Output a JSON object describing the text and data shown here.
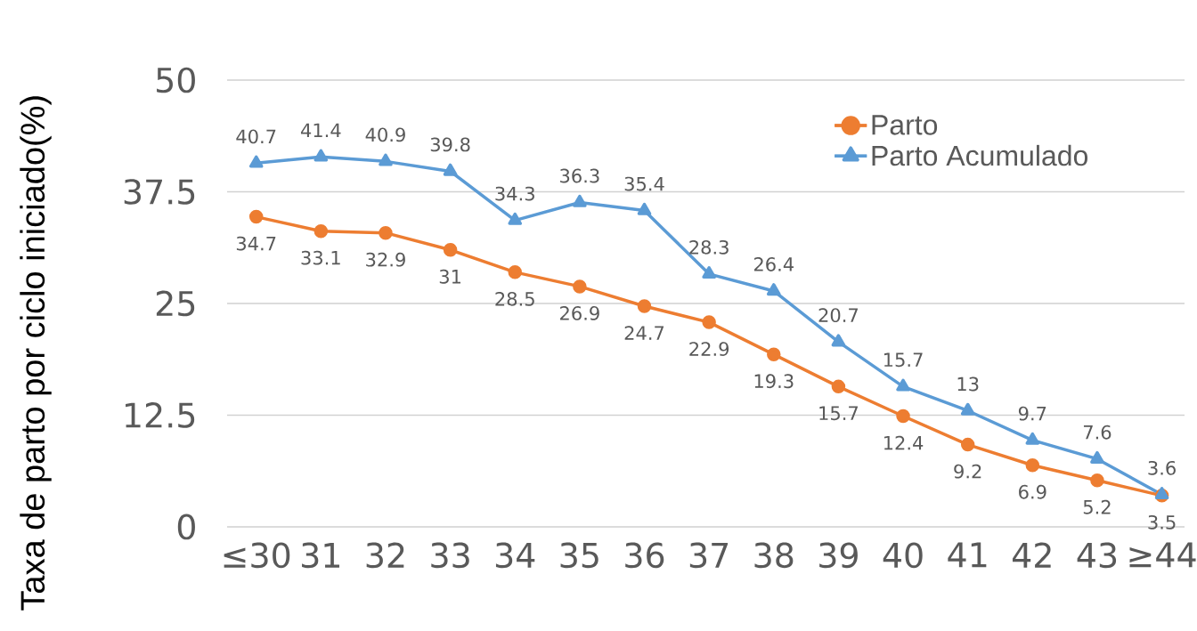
{
  "chart_data": {
    "type": "line",
    "ylabel": "Taxa de parto por ciclo iniciado(%)",
    "categories": [
      "≤30",
      "31",
      "32",
      "33",
      "34",
      "35",
      "36",
      "37",
      "38",
      "39",
      "40",
      "41",
      "42",
      "43",
      "≥44"
    ],
    "series": [
      {
        "name": "Parto",
        "color": "#ed7d31",
        "marker": "circle",
        "values": [
          34.7,
          33.1,
          32.9,
          31,
          28.5,
          26.9,
          24.7,
          22.9,
          19.3,
          15.7,
          12.4,
          9.2,
          6.9,
          5.2,
          3.5
        ]
      },
      {
        "name": "Parto Acumulado",
        "color": "#5b9bd5",
        "marker": "triangle",
        "values": [
          40.7,
          41.4,
          40.9,
          39.8,
          34.3,
          36.3,
          35.4,
          28.3,
          26.4,
          20.7,
          15.7,
          13,
          9.7,
          7.6,
          3.6
        ]
      }
    ],
    "ylim": [
      0,
      50
    ],
    "yticks": [
      0,
      12.5,
      25,
      37.5,
      50
    ],
    "grid": "y",
    "legend": "top right",
    "data_labels": true,
    "line_style": "solid"
  }
}
